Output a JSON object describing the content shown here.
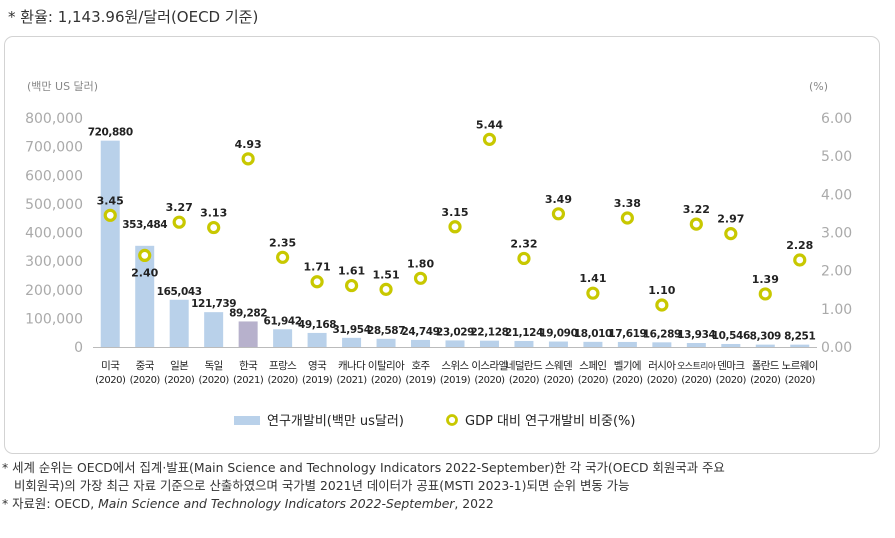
{
  "top_note": "* 환율: 1,143.96원/달러(OECD 기준)",
  "footnotes": {
    "line1": "* 세계 순위는 OECD에서 집계·발표(Main Science and Technology Indicators 2022-September)한 각 국가(OECD 회원국과 주요",
    "line2": "비회원국)의 가장 최근 자료 기준으로 산출하였으며 국가별 2021년 데이터가 공표(MSTI 2023-1)되면 순위 변동 가능",
    "line3_prefix": "* 자료원: OECD, ",
    "line3_italic": "Main Science and Technology Indicators 2022-September",
    "line3_suffix": ", 2022"
  },
  "chart_data": {
    "type": "bar",
    "left_axis_unit": "(백만 US 달러)",
    "right_axis_unit": "(%)",
    "ylim": [
      0,
      800000
    ],
    "y2lim": [
      0,
      6
    ],
    "yticks": [
      "0",
      "100,000",
      "200,000",
      "300,000",
      "400,000",
      "500,000",
      "600,000",
      "700,000",
      "800,000"
    ],
    "y2ticks": [
      "0.00",
      "1.00",
      "2.00",
      "3.00",
      "4.00",
      "5.00",
      "6.00"
    ],
    "grid": false,
    "legend_position": "bottom",
    "categories": [
      {
        "name": "미국",
        "year": "(2020)"
      },
      {
        "name": "중국",
        "year": "(2020)"
      },
      {
        "name": "일본",
        "year": "(2020)"
      },
      {
        "name": "독일",
        "year": "(2020)"
      },
      {
        "name": "한국",
        "year": "(2021)"
      },
      {
        "name": "프랑스",
        "year": "(2020)"
      },
      {
        "name": "영국",
        "year": "(2019)"
      },
      {
        "name": "캐나다",
        "year": "(2021)"
      },
      {
        "name": "이탈리아",
        "year": "(2020)"
      },
      {
        "name": "호주",
        "year": "(2019)"
      },
      {
        "name": "스위스",
        "year": "(2019)"
      },
      {
        "name": "이스라엘",
        "year": "(2020)"
      },
      {
        "name": "네덜란드",
        "year": "(2020)"
      },
      {
        "name": "스웨덴",
        "year": "(2020)"
      },
      {
        "name": "스페인",
        "year": "(2020)"
      },
      {
        "name": "벨기에",
        "year": "(2020)"
      },
      {
        "name": "러시아",
        "year": "(2020)"
      },
      {
        "name": "오스트리아",
        "year": "(2020)"
      },
      {
        "name": "덴마크",
        "year": "(2020)"
      },
      {
        "name": "폴란드",
        "year": "(2020)"
      },
      {
        "name": "노르웨이",
        "year": "(2020)"
      }
    ],
    "series": [
      {
        "name": "연구개발비(백만 us달러)",
        "kind": "bar",
        "axis": "left",
        "color": "#b9d1ea",
        "highlight_color": "#b7b1cc",
        "highlight_index": 4,
        "values": [
          720880,
          353484,
          165043,
          121739,
          89282,
          61942,
          49168,
          31954,
          28587,
          24749,
          23029,
          22128,
          21124,
          19090,
          18010,
          17619,
          16289,
          13934,
          10546,
          8309,
          8251
        ],
        "labels": [
          "720,880",
          "353,484",
          "165,043",
          "121,739",
          "89,282",
          "61,942",
          "49,168",
          "31,954",
          "28,587",
          "24,749",
          "23,029",
          "22,128",
          "21,124",
          "19,090",
          "18,010",
          "17,619",
          "16,289",
          "13,934",
          "10,546",
          "8,309",
          "8,251"
        ]
      },
      {
        "name": "GDP 대비 연구개발비 비중(%)",
        "kind": "marker",
        "axis": "right",
        "color": "#c8c800",
        "values": [
          3.45,
          2.4,
          3.27,
          3.13,
          4.93,
          2.35,
          1.71,
          1.61,
          1.51,
          1.8,
          3.15,
          5.44,
          2.32,
          3.49,
          1.41,
          3.38,
          1.1,
          3.22,
          2.97,
          1.39,
          2.28
        ],
        "labels": [
          "3.45",
          "2.40",
          "3.27",
          "3.13",
          "4.93",
          "2.35",
          "1.71",
          "1.61",
          "1.51",
          "1.80",
          "3.15",
          "5.44",
          "2.32",
          "3.49",
          "1.41",
          "3.38",
          "1.10",
          "3.22",
          "2.97",
          "1.39",
          "2.28"
        ]
      }
    ]
  }
}
